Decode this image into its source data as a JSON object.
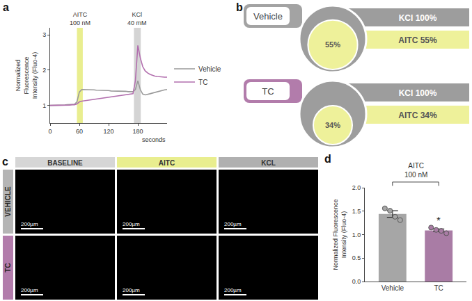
{
  "chart_data": [
    {
      "panel": "a",
      "type": "line",
      "x": [
        0,
        5,
        10,
        15,
        20,
        25,
        30,
        35,
        40,
        45,
        50,
        55,
        60,
        65,
        70,
        75,
        80,
        85,
        90,
        95,
        100,
        105,
        110,
        115,
        120,
        125,
        130,
        135,
        140,
        145,
        150,
        155,
        160,
        165,
        170,
        175,
        180,
        185,
        190,
        195,
        200,
        205,
        210,
        215,
        220,
        225,
        230,
        235,
        240
      ],
      "series": [
        {
          "name": "Vehicle",
          "color": "#9a9a9a",
          "values": [
            1.0,
            1.0,
            1.0,
            1.0,
            1.01,
            1.01,
            1.01,
            1.02,
            1.02,
            1.02,
            1.03,
            1.1,
            1.38,
            1.45,
            1.45,
            1.45,
            1.44,
            1.44,
            1.44,
            1.43,
            1.43,
            1.43,
            1.42,
            1.42,
            1.42,
            1.41,
            1.41,
            1.41,
            1.4,
            1.4,
            1.4,
            1.4,
            1.39,
            1.39,
            1.39,
            1.45,
            1.7,
            1.45,
            1.32,
            1.3,
            1.31,
            1.33,
            1.35,
            1.37,
            1.39,
            1.41,
            1.43,
            1.44,
            1.45
          ]
        },
        {
          "name": "TC",
          "color": "#b26fae",
          "values": [
            1.0,
            1.0,
            1.0,
            1.0,
            1.0,
            1.01,
            1.01,
            1.01,
            1.01,
            1.02,
            1.02,
            1.04,
            1.1,
            1.12,
            1.13,
            1.14,
            1.15,
            1.16,
            1.17,
            1.18,
            1.19,
            1.2,
            1.21,
            1.22,
            1.23,
            1.24,
            1.25,
            1.26,
            1.27,
            1.28,
            1.29,
            1.3,
            1.31,
            1.32,
            1.33,
            1.7,
            2.7,
            2.35,
            2.1,
            1.98,
            1.92,
            1.88,
            1.85,
            1.83,
            1.82,
            1.81,
            1.8,
            1.8,
            1.8
          ]
        }
      ],
      "xlabel": "seconds",
      "ylabel": "Normalized Fluorescence Intensity (Fluo-4)",
      "xlim": [
        0,
        240
      ],
      "xticks": [
        0,
        60,
        120,
        180
      ],
      "ylim": [
        0.5,
        3.2
      ],
      "yticks": [
        1,
        2,
        3
      ],
      "grid": false,
      "legend": "right",
      "annotations": [
        {
          "lines": [
            "AITC",
            "100 nM"
          ],
          "x0": 55,
          "x1": 67,
          "color": "#e9ee8f"
        },
        {
          "lines": [
            "KCl",
            "40 mM"
          ],
          "x0": 172,
          "x1": 186,
          "color": "#d4d4d4"
        }
      ]
    },
    {
      "panel": "d",
      "type": "bar",
      "title": "AITC",
      "subtitle": "100 nM",
      "categories": [
        "Vehicle",
        "TC"
      ],
      "values": [
        1.44,
        1.09
      ],
      "errors": [
        0.07,
        0.03
      ],
      "points": [
        [
          1.56,
          1.51,
          1.38,
          1.31
        ],
        [
          1.15,
          1.1,
          1.08,
          1.03
        ]
      ],
      "colors": [
        "#a6a6a6",
        "#a97ca5"
      ],
      "ylabel": "Normalized Fluorescence Intensity (Fluo-4)",
      "ylim": [
        0,
        2
      ],
      "yticks": [
        {
          "value": 0,
          "label": "0.0"
        },
        {
          "value": 0.5,
          "label": "0.5"
        },
        {
          "value": 1,
          "label": "1.0"
        },
        {
          "value": 1.5,
          "label": "1.5"
        },
        {
          "value": 2,
          "label": "2.0"
        }
      ],
      "grid": false,
      "annotations": [
        {
          "text": "*",
          "category": "TC"
        }
      ]
    }
  ],
  "diagram": {
    "panel": "b",
    "total_color": "#9d9d9d",
    "subset_color": "#eef19a",
    "groups": [
      {
        "name": "Vehicle",
        "color": "#a3a3a3",
        "total_text": "KCl 100%",
        "total_value": 100,
        "subset_text": "AITC 55%",
        "subset_value": 55,
        "subset_label": "55%"
      },
      {
        "name": "TC",
        "color": "#b27cab",
        "total_text": "KCl 100%",
        "total_value": 100,
        "subset_text": "AITC 34%",
        "subset_value": 34,
        "subset_label": "34%"
      }
    ]
  },
  "images": {
    "panel": "c",
    "columns": [
      {
        "text": "BASELINE",
        "color": "#d6d6d6"
      },
      {
        "text": "AITC",
        "color": "#e9ee8f"
      },
      {
        "text": "KCL",
        "color": "#b0b0b0"
      }
    ],
    "rows": [
      {
        "text": "VEHICLE",
        "color": "#b5b5b5"
      },
      {
        "text": "TC",
        "color": "#b27cab"
      }
    ],
    "scale_bar": "200µm"
  }
}
